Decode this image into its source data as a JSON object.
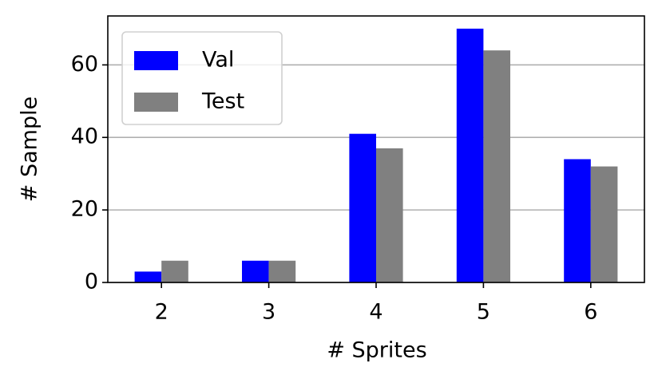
{
  "chart_data": {
    "type": "bar",
    "xlabel": "# Sprites",
    "ylabel": "# Sample",
    "categories": [
      "2",
      "3",
      "4",
      "5",
      "6"
    ],
    "series": [
      {
        "name": "Val",
        "color": "#0000ff",
        "values": [
          3,
          6,
          41,
          70,
          34
        ]
      },
      {
        "name": "Test",
        "color": "#808080",
        "values": [
          6,
          6,
          37,
          64,
          32
        ]
      }
    ],
    "ylim": [
      0,
      73.5
    ],
    "yticks": [
      0,
      20,
      40,
      60
    ],
    "grid": "y",
    "legend": "upper-left"
  }
}
